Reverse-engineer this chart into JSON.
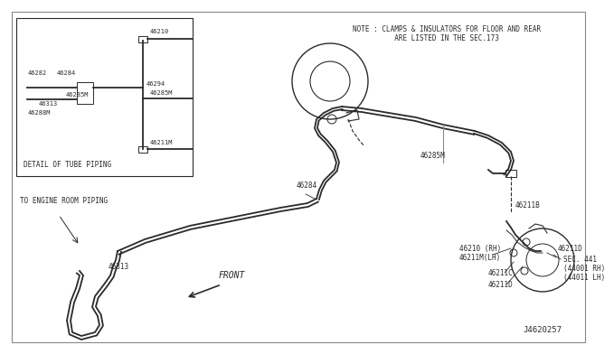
{
  "bg_color": "#ffffff",
  "line_color": "#2a2a2a",
  "note_line1": "NOTE : CLAMPS & INSULATORS FOR FLOOR AND REAR",
  "note_line2": "          ARE LISTED IN THE SEC.173",
  "engine_room_label": "TO ENGINE ROOM PIPING",
  "front_label": "FRONT",
  "label_46284": "46284",
  "label_46285M": "46285M",
  "label_46313": "46313",
  "label_46211B": "46211B",
  "label_46210RH": "46210 (RH)",
  "label_46211MLH": "46211M(LH)",
  "label_46211C": "46211C",
  "label_46211D": "46211D",
  "label_46211D2": "46211D",
  "label_sec441": "SEC. 441",
  "label_44001RH": "(44001 RH)",
  "label_44011LH": "(44011 LH)",
  "label_J": "J4620257",
  "detail_label": "DETAIL OF TUBE PIPING",
  "inset_labels": [
    "46282",
    "46284",
    "46285M",
    "46313",
    "46288M",
    "46210",
    "46294",
    "46285M",
    "46211M"
  ],
  "font_size": 5.5
}
